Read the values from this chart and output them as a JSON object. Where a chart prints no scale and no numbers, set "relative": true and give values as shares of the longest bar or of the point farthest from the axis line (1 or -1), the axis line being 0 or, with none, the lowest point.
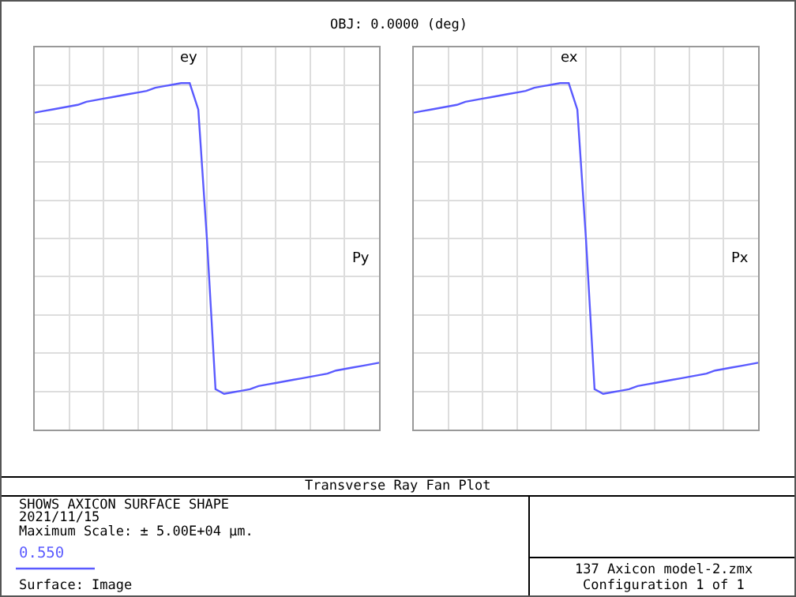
{
  "chart_data": [
    {
      "type": "line",
      "title": "OBJ: 0.0000 (deg)",
      "xlabel": "Py",
      "ylabel": "ey",
      "relative": true,
      "grid": true,
      "legend": "bottom left",
      "categories": [
        null,
        null,
        null,
        null,
        null,
        null,
        null,
        null,
        null,
        null,
        null,
        null,
        null,
        null,
        null,
        null,
        null,
        null,
        null,
        null,
        null,
        null,
        null,
        null,
        null,
        null,
        null,
        null,
        null,
        null,
        null,
        null,
        null,
        null,
        null,
        null,
        null,
        null,
        null,
        null,
        null
      ],
      "series": [
        {
          "name": "0.550",
          "color": "#5a5aff",
          "values": [
            0.81,
            0.82,
            0.83,
            0.84,
            0.85,
            0.86,
            0.88,
            0.89,
            0.9,
            0.91,
            0.92,
            0.93,
            0.94,
            0.95,
            0.97,
            0.98,
            0.99,
            1.0,
            1.0,
            0.83,
            0,
            -0.97,
            -1.0,
            -0.99,
            -0.98,
            -0.97,
            -0.95,
            -0.94,
            -0.93,
            -0.92,
            -0.91,
            -0.9,
            -0.89,
            -0.88,
            -0.87,
            -0.85,
            -0.84,
            -0.83,
            -0.82,
            -0.81,
            -0.8
          ]
        }
      ],
      "annotations": [
        "Transverse Ray Fan Plot",
        "SHOWS AXICON SURFACE SHAPE",
        "2021/11/15",
        "Maximum Scale: ± 5.00E+04 µm.",
        "Surface: Image",
        "137 Axicon model-2.zmx",
        "Configuration 1 of 1"
      ]
    },
    {
      "type": "line",
      "xlabel": "Px",
      "ylabel": "ex",
      "relative": true,
      "grid": true,
      "categories": [
        null,
        null,
        null,
        null,
        null,
        null,
        null,
        null,
        null,
        null,
        null,
        null,
        null,
        null,
        null,
        null,
        null,
        null,
        null,
        null,
        null,
        null,
        null,
        null,
        null,
        null,
        null,
        null,
        null,
        null,
        null,
        null,
        null,
        null,
        null,
        null,
        null,
        null,
        null,
        null,
        null
      ],
      "series": [
        {
          "color": "#5a5aff",
          "values": [
            0.81,
            0.82,
            0.83,
            0.84,
            0.85,
            0.86,
            0.88,
            0.89,
            0.9,
            0.91,
            0.92,
            0.93,
            0.94,
            0.95,
            0.97,
            0.98,
            0.99,
            1.0,
            1.0,
            0.83,
            0,
            -0.97,
            -1.0,
            -0.99,
            -0.98,
            -0.97,
            -0.95,
            -0.94,
            -0.93,
            -0.92,
            -0.91,
            -0.9,
            -0.89,
            -0.88,
            -0.87,
            -0.85,
            -0.84,
            -0.83,
            -0.82,
            -0.81,
            -0.8
          ]
        }
      ]
    }
  ]
}
